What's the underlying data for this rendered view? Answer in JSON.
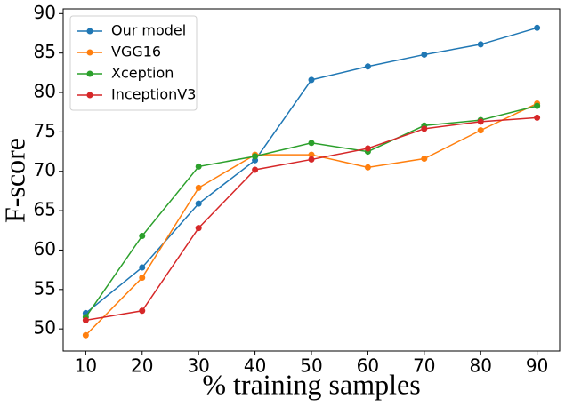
{
  "chart_data": {
    "type": "line",
    "x_label": "% training samples",
    "y_label": "F-score",
    "x": [
      10,
      20,
      30,
      40,
      50,
      60,
      70,
      80,
      90
    ],
    "series": [
      {
        "name": "Our model",
        "color": "#1f77b4",
        "values": [
          52.0,
          57.8,
          65.9,
          71.4,
          81.6,
          83.3,
          84.8,
          86.1,
          88.2
        ]
      },
      {
        "name": "VGG16",
        "color": "#ff7f0e",
        "values": [
          49.2,
          56.5,
          67.9,
          72.1,
          72.1,
          70.5,
          71.6,
          75.2,
          78.6
        ]
      },
      {
        "name": "Xception",
        "color": "#2ca02c",
        "values": [
          51.5,
          61.8,
          70.6,
          71.9,
          73.6,
          72.5,
          75.8,
          76.5,
          78.3
        ]
      },
      {
        "name": "InceptionV3",
        "color": "#d62728",
        "values": [
          51.1,
          52.3,
          62.8,
          70.2,
          71.5,
          72.9,
          75.4,
          76.3,
          76.8
        ]
      }
    ],
    "xlim": [
      6,
      94
    ],
    "xticks": [
      10,
      20,
      30,
      40,
      50,
      60,
      70,
      80,
      90
    ],
    "ylim": [
      47.2,
      90.6
    ],
    "yticks": [
      50,
      55,
      60,
      65,
      70,
      75,
      80,
      85,
      90
    ],
    "legend": "upper left"
  }
}
